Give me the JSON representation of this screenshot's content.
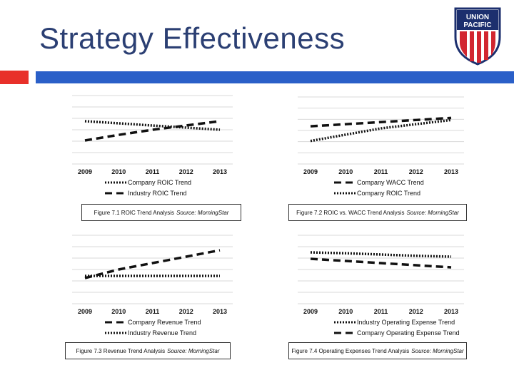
{
  "slide": {
    "title": "Strategy Effectiveness"
  },
  "logo": {
    "line1": "UNION",
    "line2": "PACIFIC"
  },
  "colors": {
    "title": "#2b3f73",
    "accent_red": "#e8302a",
    "accent_blue": "#2a5fc8",
    "line": "#111111"
  },
  "chart_data": [
    {
      "type": "line",
      "categories": [
        "2009",
        "2010",
        "2011",
        "2012",
        "2013"
      ],
      "series": [
        {
          "name": "Company ROIC Trend",
          "style": "dotted",
          "values": [
            10.0,
            9.5,
            9.0,
            8.5,
            8.0
          ]
        },
        {
          "name": "Industry ROIC Trend",
          "style": "dashed",
          "values": [
            5.5,
            6.8,
            8.0,
            9.0,
            10.0
          ]
        }
      ],
      "ylim": [
        0,
        16
      ],
      "legend": "bottom",
      "caption": {
        "text": "Figure 7.1 ROIC Trend Analysis",
        "source": "Source: MorningStar"
      }
    },
    {
      "type": "line",
      "categories": [
        "2009",
        "2010",
        "2011",
        "2012",
        "2013"
      ],
      "series": [
        {
          "name": "Company WACC Trend",
          "style": "dashed",
          "values": [
            9.0,
            9.5,
            10.0,
            10.5,
            11.0
          ]
        },
        {
          "name": "Company ROIC Trend",
          "style": "dotted",
          "values": [
            5.5,
            7.0,
            8.5,
            9.5,
            10.5
          ]
        }
      ],
      "ylim": [
        0,
        16
      ],
      "legend": "bottom",
      "caption": {
        "text": "Figure 7.2 ROIC vs. WACC Trend Analysis",
        "source": "Source: MorningStar"
      }
    },
    {
      "type": "line",
      "categories": [
        "2009",
        "2010",
        "2011",
        "2012",
        "2013"
      ],
      "series": [
        {
          "name": "Company Revenue Trend",
          "style": "dashed",
          "values": [
            6.0,
            8.0,
            9.5,
            11.0,
            12.5
          ]
        },
        {
          "name": "Industry Revenue Trend",
          "style": "dotted",
          "values": [
            6.5,
            6.5,
            6.5,
            6.5,
            6.5
          ]
        }
      ],
      "ylim": [
        0,
        16
      ],
      "legend": "bottom",
      "caption": {
        "text": "Figure 7.3 Revenue Trend Analysis",
        "source": "Source: MorningStar"
      }
    },
    {
      "type": "line",
      "categories": [
        "2009",
        "2010",
        "2011",
        "2012",
        "2013"
      ],
      "series": [
        {
          "name": "Industry Operating Expense Trend",
          "style": "dotted",
          "values": [
            12.0,
            11.8,
            11.5,
            11.2,
            11.0
          ]
        },
        {
          "name": "Company Operating Expense Trend",
          "style": "dashed",
          "values": [
            10.5,
            10.0,
            9.5,
            9.0,
            8.5
          ]
        }
      ],
      "ylim": [
        0,
        16
      ],
      "legend": "bottom",
      "caption": {
        "text": "Figure 7.4 Operating Expenses Trend Analysis",
        "source": "Source: MorningStar"
      }
    }
  ]
}
